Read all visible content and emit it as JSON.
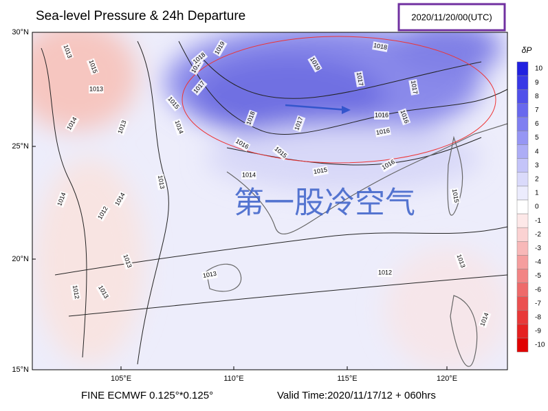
{
  "header": {
    "title": "Sea-level Pressure & 24h Departure",
    "datetime": "2020/11/20/00(UTC)"
  },
  "axes": {
    "lat_labels": [
      "30°N",
      "25°N",
      "20°N",
      "15°N"
    ],
    "lon_labels": [
      "105°E",
      "110°E",
      "115°E",
      "120°E"
    ]
  },
  "colorbar": {
    "label": "δP",
    "ticks": [
      10,
      9,
      8,
      7,
      6,
      5,
      4,
      3,
      2,
      1,
      0,
      -1,
      -2,
      -3,
      -4,
      -5,
      -6,
      -7,
      -8,
      -9,
      -10
    ],
    "colors": [
      "#2020e0",
      "#3838e6",
      "#5050ea",
      "#6868ee",
      "#7f7ff1",
      "#9696f4",
      "#adadf6",
      "#c4c4f9",
      "#dadafb",
      "#ececfd",
      "#ffffff",
      "#fde8e8",
      "#fbd2d2",
      "#f8b8b8",
      "#f59e9e",
      "#f28484",
      "#ee6a6a",
      "#eb5050",
      "#e83838",
      "#e52020",
      "#e00000"
    ]
  },
  "contour_labels": [
    "1013",
    "1015",
    "1013",
    "1014",
    "1013",
    "1015",
    "1018",
    "1019",
    "1017",
    "1015",
    "1014",
    "1018",
    "1016",
    "1017",
    "1019",
    "1018",
    "1017",
    "1017",
    "1016",
    "1016",
    "1016",
    "1015",
    "1015",
    "1014",
    "1016",
    "1013",
    "1014",
    "1014",
    "1012",
    "1013",
    "1013",
    "1013",
    "1012",
    "1012",
    "1013",
    "1014",
    "1015"
  ],
  "annotation": "第一股冷空气",
  "footer": {
    "model": "FINE ECMWF 0.125°*0.125°",
    "valid": "Valid Time:2020/11/17/12 + 060hrs"
  }
}
